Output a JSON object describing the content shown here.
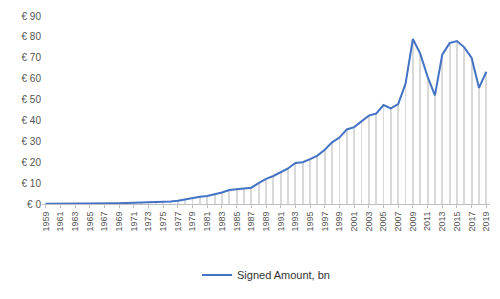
{
  "chart_data": {
    "type": "line",
    "x": [
      1959,
      1960,
      1961,
      1962,
      1963,
      1964,
      1965,
      1966,
      1967,
      1968,
      1969,
      1970,
      1971,
      1972,
      1973,
      1974,
      1975,
      1976,
      1977,
      1978,
      1979,
      1980,
      1981,
      1982,
      1983,
      1984,
      1985,
      1986,
      1987,
      1988,
      1989,
      1990,
      1991,
      1992,
      1993,
      1994,
      1995,
      1996,
      1997,
      1998,
      1999,
      2000,
      2001,
      2002,
      2003,
      2004,
      2005,
      2006,
      2007,
      2008,
      2009,
      2010,
      2011,
      2012,
      2013,
      2014,
      2015,
      2016,
      2017,
      2018,
      2019
    ],
    "series": [
      {
        "name": "Signed Amount, bn",
        "color": "#4472c4",
        "values": [
          0.1,
          0.1,
          0.1,
          0.2,
          0.2,
          0.2,
          0.3,
          0.3,
          0.4,
          0.4,
          0.4,
          0.5,
          0.6,
          0.7,
          0.8,
          1.2,
          1.0,
          1.2,
          1.6,
          2.2,
          3.0,
          3.5,
          3.8,
          4.5,
          5.5,
          6.7,
          7.0,
          7.4,
          7.8,
          10,
          12,
          13.4,
          15.3,
          17,
          19.6,
          20,
          21.5,
          23.2,
          26,
          29.5,
          31.8,
          35.7,
          36.8,
          39.6,
          42.3,
          43.3,
          47.4,
          45.8,
          47.8,
          57.6,
          79,
          72,
          61,
          52,
          71.5,
          77,
          78,
          75,
          69.9,
          55.6,
          63.3
        ]
      }
    ],
    "xlim": [
      1958.5,
      2019.5
    ],
    "xticks": [
      1959,
      1961,
      1963,
      1965,
      1967,
      1969,
      1971,
      1973,
      1975,
      1977,
      1979,
      1981,
      1983,
      1985,
      1987,
      1989,
      1991,
      1993,
      1995,
      1997,
      1999,
      2001,
      2003,
      2005,
      2007,
      2009,
      2011,
      2013,
      2015,
      2017,
      2019
    ],
    "ylim": [
      0,
      90
    ],
    "yticks": [
      {
        "value": 0,
        "label": "€ 0"
      },
      {
        "value": 10,
        "label": "€ 10"
      },
      {
        "value": 20,
        "label": "€ 20"
      },
      {
        "value": 30,
        "label": "€ 30"
      },
      {
        "value": 40,
        "label": "€ 40"
      },
      {
        "value": 50,
        "label": "€ 50"
      },
      {
        "value": 60,
        "label": "€ 60"
      },
      {
        "value": 70,
        "label": "€ 70"
      },
      {
        "value": 80,
        "label": "€ 80"
      },
      {
        "value": 90,
        "label": "€ 90"
      }
    ],
    "grid": false,
    "legend": "bottom"
  }
}
